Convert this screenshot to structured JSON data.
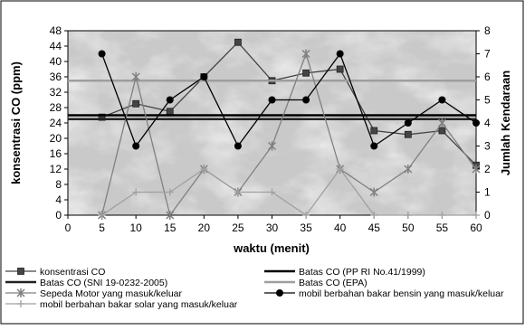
{
  "chart_data": {
    "type": "line",
    "xlabel": "waktu (menit)",
    "ylabel": "konsentrasi CO (ppm)",
    "y2label": "Jumlah Kendaraan",
    "x_ticks": [
      0,
      5,
      10,
      15,
      20,
      25,
      30,
      35,
      40,
      45,
      50,
      55,
      60
    ],
    "y_ticks": [
      0,
      4,
      8,
      12,
      16,
      20,
      24,
      28,
      32,
      36,
      40,
      44,
      48
    ],
    "y2_ticks": [
      0,
      1,
      2,
      3,
      4,
      5,
      6,
      7,
      8
    ],
    "xlim": [
      0,
      60
    ],
    "ylim": [
      0,
      48
    ],
    "y2lim": [
      0,
      8
    ],
    "grid": false,
    "legend_position": "bottom",
    "series": [
      {
        "name": "konsentrasi CO",
        "axis": "left",
        "marker": "square",
        "color": "#444444",
        "x": [
          5,
          10,
          15,
          20,
          25,
          30,
          35,
          40,
          45,
          50,
          55,
          60
        ],
        "values": [
          25.5,
          29,
          27,
          36,
          45,
          35,
          37,
          38,
          22,
          21,
          22,
          13
        ]
      },
      {
        "name": "Batas CO (PP RI No.41/1999)",
        "axis": "left",
        "marker": "none",
        "color": "#000000",
        "x": [
          0,
          60
        ],
        "values": [
          26,
          26
        ]
      },
      {
        "name": "Batas CO (SNI 19-0232-2005)",
        "axis": "left",
        "marker": "none",
        "color": "#222222",
        "x": [
          0,
          60
        ],
        "values": [
          25,
          25
        ]
      },
      {
        "name": "Batas CO (EPA)",
        "axis": "left",
        "marker": "none",
        "color": "#9e9e9e",
        "x": [
          0,
          60
        ],
        "values": [
          35,
          35
        ]
      },
      {
        "name": "Sepeda Motor yang masuk/keluar",
        "axis": "right",
        "marker": "star",
        "color": "#808080",
        "x": [
          5,
          10,
          15,
          20,
          25,
          30,
          35,
          40,
          45,
          50,
          55,
          60
        ],
        "values": [
          0,
          6,
          0,
          2,
          1,
          3,
          7,
          2,
          1,
          2,
          4,
          2
        ]
      },
      {
        "name": "mobil berbahan bakar bensin yang masuk/keluar",
        "axis": "right",
        "marker": "circle",
        "color": "#000000",
        "x": [
          5,
          10,
          15,
          20,
          25,
          30,
          35,
          40,
          45,
          50,
          55,
          60
        ],
        "values": [
          7,
          3,
          5,
          6,
          3,
          5,
          5,
          7,
          3,
          4,
          5,
          4
        ]
      },
      {
        "name": "mobil berbahan bakar solar yang masuk/keluar",
        "axis": "right",
        "marker": "plus",
        "color": "#a0a0a0",
        "x": [
          5,
          10,
          15,
          20,
          25,
          30,
          35,
          40,
          45,
          50,
          55,
          60
        ],
        "values": [
          0,
          1,
          1,
          2,
          1,
          1,
          0,
          2,
          0,
          0,
          0,
          0
        ]
      }
    ]
  }
}
